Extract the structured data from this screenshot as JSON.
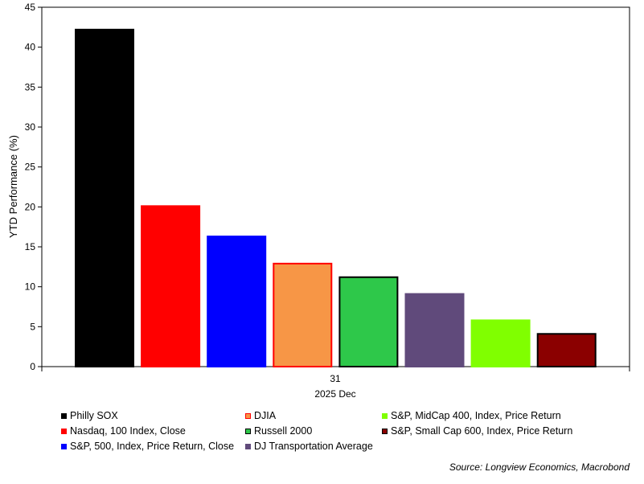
{
  "chart_data": {
    "type": "bar",
    "ylabel": "YTD Performance (%)",
    "ylim": [
      0,
      45
    ],
    "yticks": [
      0,
      5,
      10,
      15,
      20,
      25,
      30,
      35,
      40,
      45
    ],
    "xtick_day": "31",
    "xtick_month": "2025 Dec",
    "grid": false,
    "legend_placement": "bottom",
    "series": [
      {
        "name": "Philly SOX",
        "value": 42.2,
        "color": "#000000",
        "border": "#000000"
      },
      {
        "name": "Nasdaq, 100 Index, Close",
        "value": 20.1,
        "color": "#ff0000",
        "border": "#ff0000"
      },
      {
        "name": "S&P, 500, Index, Price Return, Close",
        "value": 16.3,
        "color": "#0000ff",
        "border": "#0000ff"
      },
      {
        "name": "DJIA",
        "value": 12.9,
        "color": "#f79646",
        "border": "#ff0000"
      },
      {
        "name": "Russell 2000",
        "value": 11.2,
        "color": "#2ec84a",
        "border": "#000000"
      },
      {
        "name": "DJ Transportation Average",
        "value": 9.1,
        "color": "#604a7b",
        "border": "#604a7b"
      },
      {
        "name": "S&P, MidCap 400, Index, Price Return",
        "value": 5.8,
        "color": "#80ff00",
        "border": "#80ff00"
      },
      {
        "name": "S&P, Small Cap 600, Index, Price Return",
        "value": 4.1,
        "color": "#8b0000",
        "border": "#000000"
      }
    ],
    "source": "Source: Longview Economics, Macrobond"
  }
}
